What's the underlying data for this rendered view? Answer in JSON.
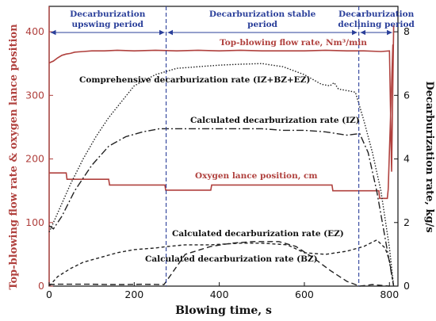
{
  "chart_data": {
    "type": "line",
    "xlabel": "Blowing time, s",
    "ylabel_left": "Top-blowing flow rate & oxygen lance position",
    "ylabel_right": "Decarburization rate, kg/s",
    "xlim": [
      0,
      820
    ],
    "ylim_left": [
      0,
      440
    ],
    "ylim_right": [
      0,
      8.8
    ],
    "xticks": [
      0,
      200,
      400,
      600,
      800
    ],
    "yticks_left": [
      0,
      100,
      200,
      300,
      400
    ],
    "yticks_right": [
      0,
      2,
      4,
      6,
      8
    ],
    "grid": false,
    "periods": [
      {
        "label_line1": "Decarburization",
        "label_line2": "upswing period",
        "x_start": 0,
        "x_end": 275
      },
      {
        "label_line1": "Decarburization stable",
        "label_line2": "period",
        "x_start": 275,
        "x_end": 728
      },
      {
        "label_line1": "Decarburization",
        "label_line2": "declining period",
        "x_start": 728,
        "x_end": 810
      }
    ],
    "period_boundaries": [
      275,
      728
    ],
    "series": [
      {
        "name": "Top-blowing flow rate, Nm³/min",
        "axis": "left",
        "style": "solid",
        "color": "#b0413e",
        "x": [
          0,
          10,
          20,
          30,
          40,
          50,
          60,
          80,
          100,
          130,
          160,
          200,
          250,
          300,
          350,
          400,
          450,
          500,
          550,
          600,
          650,
          700,
          740,
          780,
          800,
          805,
          810
        ],
        "y": [
          351,
          354,
          359,
          363,
          365,
          366,
          368,
          369,
          370,
          370,
          371,
          370,
          371,
          370,
          371,
          370,
          371,
          370,
          370,
          370,
          371,
          370,
          370,
          369,
          370,
          180,
          410
        ]
      },
      {
        "name": "Oxygen lance position, cm",
        "axis": "left",
        "style": "solid",
        "color": "#b0413e",
        "x": [
          0,
          40,
          42,
          140,
          142,
          272,
          274,
          380,
          382,
          665,
          667,
          775,
          777,
          795,
          797,
          808
        ],
        "y": [
          178,
          178,
          168,
          168,
          159,
          159,
          151,
          151,
          159,
          159,
          150,
          150,
          138,
          138,
          152,
          380
        ]
      },
      {
        "name": "Comprehensive decarburization rate (IZ+BZ+EZ)",
        "axis": "right",
        "style": "dotted",
        "color": "#222222",
        "x": [
          0,
          10,
          30,
          50,
          80,
          110,
          140,
          170,
          200,
          250,
          300,
          350,
          400,
          450,
          500,
          550,
          600,
          640,
          660,
          670,
          680,
          700,
          720,
          740,
          760,
          780,
          800,
          810
        ],
        "y": [
          1.7,
          2.0,
          2.6,
          3.2,
          4.0,
          4.7,
          5.3,
          5.8,
          6.3,
          6.65,
          6.85,
          6.9,
          6.95,
          6.98,
          7.0,
          6.9,
          6.65,
          6.35,
          6.3,
          6.4,
          6.2,
          6.15,
          6.1,
          5.2,
          4.2,
          3.0,
          1.2,
          0.0
        ]
      },
      {
        "name": "Calculated decarburization rate (IZ)",
        "axis": "right",
        "style": "dashdot",
        "color": "#222222",
        "x": [
          0,
          10,
          30,
          60,
          100,
          140,
          180,
          220,
          260,
          300,
          350,
          400,
          450,
          500,
          550,
          600,
          650,
          700,
          730,
          750,
          770,
          790,
          810
        ],
        "y": [
          1.9,
          1.8,
          2.2,
          3.0,
          3.8,
          4.4,
          4.7,
          4.85,
          4.95,
          4.95,
          4.95,
          4.95,
          4.95,
          4.95,
          4.9,
          4.9,
          4.85,
          4.75,
          4.8,
          4.2,
          3.0,
          1.5,
          0.0
        ]
      },
      {
        "name": "Calculated decarburization rate (EZ)",
        "axis": "right",
        "style": "dashed",
        "color": "#222222",
        "x": [
          0,
          20,
          40,
          70,
          100,
          140,
          180,
          220,
          270,
          320,
          380,
          430,
          480,
          540,
          580,
          620,
          660,
          700,
          730,
          760,
          800
        ],
        "y": [
          0.05,
          0.06,
          0.06,
          0.06,
          0.06,
          0.05,
          0.05,
          0.06,
          0.05,
          1.0,
          1.25,
          1.35,
          1.4,
          1.4,
          1.25,
          0.9,
          0.5,
          0.15,
          0.0,
          0.05,
          0.0
        ]
      },
      {
        "name": "Calculated decarburization rate (BZ)",
        "axis": "right",
        "style": "dashed2",
        "color": "#222222",
        "x": [
          0,
          20,
          50,
          80,
          120,
          160,
          200,
          250,
          280,
          320,
          380,
          450,
          500,
          560,
          600,
          650,
          700,
          740,
          770,
          790,
          800,
          810
        ],
        "y": [
          0.0,
          0.3,
          0.55,
          0.75,
          0.9,
          1.05,
          1.15,
          1.2,
          1.25,
          1.3,
          1.3,
          1.35,
          1.35,
          1.3,
          1.05,
          1.0,
          1.1,
          1.25,
          1.45,
          1.2,
          0.8,
          0.0
        ]
      }
    ],
    "annotations": [
      {
        "text": "Top-blowing flow rate, Nm³/min",
        "color": "#b0413e"
      },
      {
        "text": "Comprehensive decarburization rate (IZ+BZ+EZ)",
        "color": "#111111"
      },
      {
        "text": "Calculated decarburization rate (IZ)",
        "color": "#111111"
      },
      {
        "text": "Oxygen lance position, cm",
        "color": "#b0413e"
      },
      {
        "text": "Calculated decarburization rate (EZ)",
        "color": "#111111"
      },
      {
        "text": "Calculated decarburization rate (BZ)",
        "color": "#111111"
      }
    ],
    "colors": {
      "axis_left": "#b0413e",
      "axis_right": "#111111",
      "period_lines": "#2a3f9a"
    }
  }
}
